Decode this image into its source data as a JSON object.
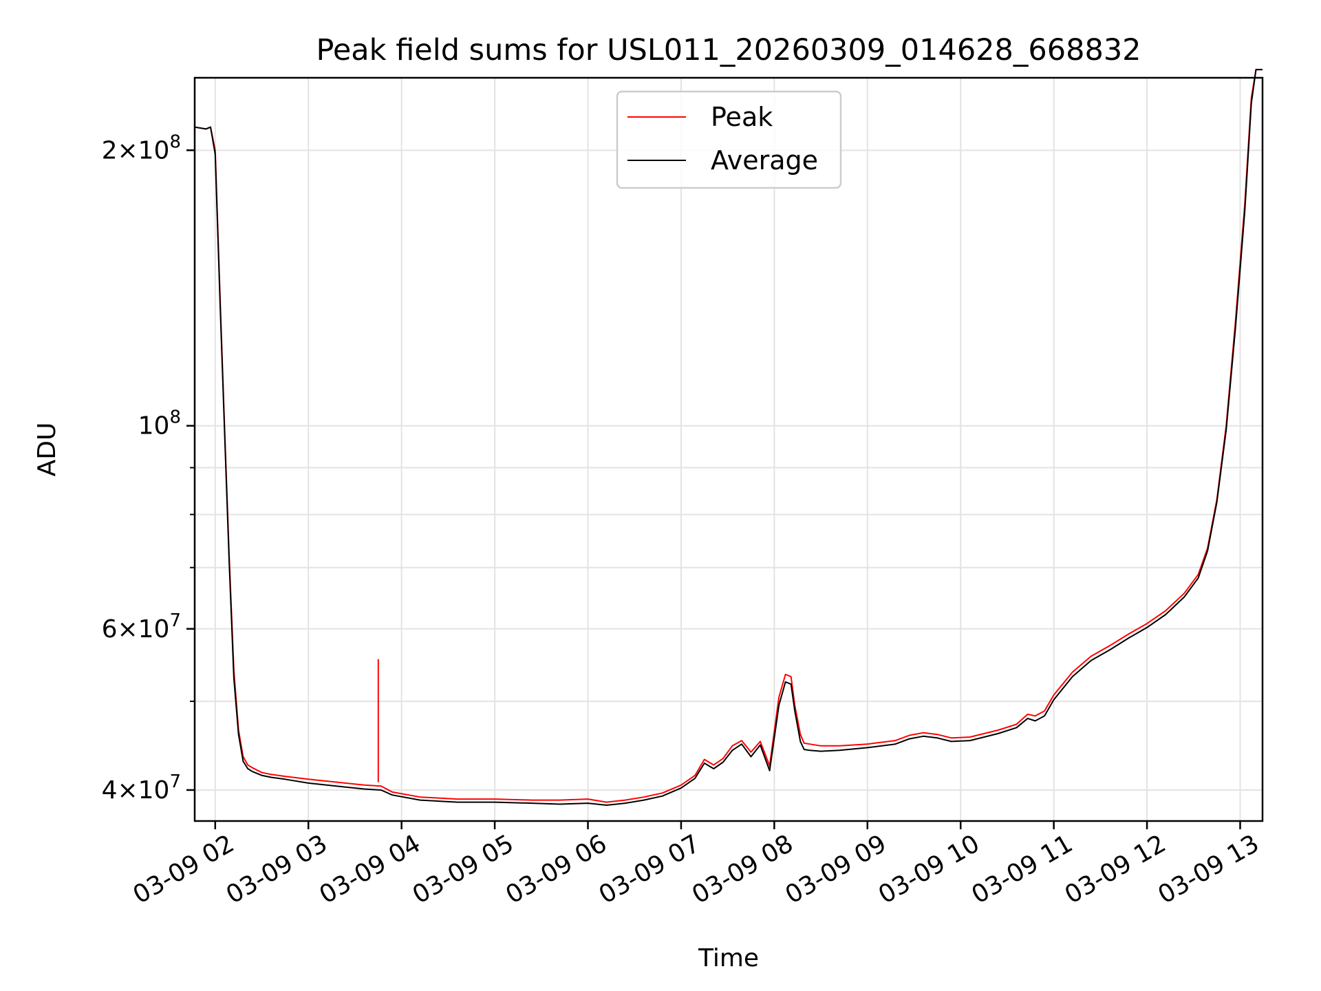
{
  "chart_data": {
    "type": "line",
    "title": "Peak field sums for USL011_20260309_014628_668832",
    "xlabel": "Time",
    "ylabel": "ADU",
    "yscale": "log",
    "grid": true,
    "legend_position": "top-center",
    "xlim_hours": [
      1.78,
      13.24
    ],
    "ylim": [
      37000000,
      240000000
    ],
    "x_ticks": [
      {
        "hour": 2,
        "label": "03-09 02"
      },
      {
        "hour": 3,
        "label": "03-09 03"
      },
      {
        "hour": 4,
        "label": "03-09 04"
      },
      {
        "hour": 5,
        "label": "03-09 05"
      },
      {
        "hour": 6,
        "label": "03-09 06"
      },
      {
        "hour": 7,
        "label": "03-09 07"
      },
      {
        "hour": 8,
        "label": "03-09 08"
      },
      {
        "hour": 9,
        "label": "03-09 09"
      },
      {
        "hour": 10,
        "label": "03-09 10"
      },
      {
        "hour": 11,
        "label": "03-09 11"
      },
      {
        "hour": 12,
        "label": "03-09 12"
      },
      {
        "hour": 13,
        "label": "03-09 13"
      }
    ],
    "y_major_ticks": [
      {
        "value": 40000000,
        "mant": "4",
        "exp": "7"
      },
      {
        "value": 60000000,
        "mant": "6",
        "exp": "7"
      },
      {
        "value": 100000000,
        "mant": "",
        "exp": "8"
      },
      {
        "value": 200000000,
        "mant": "2",
        "exp": "8"
      }
    ],
    "y_minor_ticks": [
      50000000,
      70000000,
      80000000,
      90000000
    ],
    "x_hours": [
      1.78,
      1.9,
      1.95,
      2.0,
      2.05,
      2.1,
      2.15,
      2.2,
      2.25,
      2.3,
      2.35,
      2.4,
      2.5,
      2.6,
      2.75,
      3.0,
      3.3,
      3.6,
      3.78,
      3.9,
      4.2,
      4.6,
      5.0,
      5.4,
      5.7,
      6.0,
      6.2,
      6.4,
      6.6,
      6.8,
      7.0,
      7.15,
      7.25,
      7.35,
      7.45,
      7.55,
      7.65,
      7.75,
      7.85,
      7.95,
      8.05,
      8.12,
      8.18,
      8.22,
      8.28,
      8.32,
      8.38,
      8.5,
      8.7,
      9.0,
      9.3,
      9.45,
      9.6,
      9.75,
      9.9,
      10.1,
      10.4,
      10.6,
      10.72,
      10.8,
      10.9,
      11.0,
      11.2,
      11.4,
      11.6,
      11.8,
      12.0,
      12.2,
      12.4,
      12.55,
      12.65,
      12.75,
      12.85,
      12.95,
      13.05,
      13.12,
      13.17,
      13.24
    ],
    "series": [
      {
        "name": "Peak",
        "color": "#ff0000",
        "values": [
          212000000,
          211000000,
          212000000,
          200000000,
          140000000,
          100000000,
          72000000,
          54000000,
          46500000,
          43500000,
          42600000,
          42300000,
          41800000,
          41600000,
          41400000,
          41100000,
          40800000,
          40500000,
          40400000,
          39800000,
          39300000,
          39100000,
          39100000,
          39000000,
          39000000,
          39100000,
          38800000,
          39000000,
          39300000,
          39700000,
          40500000,
          41500000,
          43200000,
          42600000,
          43300000,
          44700000,
          45300000,
          44000000,
          45200000,
          42500000,
          50500000,
          53500000,
          53200000,
          49500000,
          46000000,
          45000000,
          44900000,
          44700000,
          44700000,
          44900000,
          45300000,
          45900000,
          46200000,
          46000000,
          45600000,
          45700000,
          46500000,
          47200000,
          48400000,
          48200000,
          48800000,
          50800000,
          53800000,
          56000000,
          57500000,
          59200000,
          60800000,
          62800000,
          65600000,
          68800000,
          73500000,
          83000000,
          100000000,
          130000000,
          175000000,
          228000000,
          245000000,
          245000000
        ]
      },
      {
        "name": "Average",
        "color": "#000000",
        "values": [
          212000000,
          211000000,
          212000000,
          198000000,
          138000000,
          99000000,
          71000000,
          53000000,
          46000000,
          43000000,
          42200000,
          41900000,
          41500000,
          41300000,
          41100000,
          40700000,
          40400000,
          40100000,
          40000000,
          39500000,
          39000000,
          38800000,
          38800000,
          38700000,
          38600000,
          38700000,
          38500000,
          38700000,
          39000000,
          39400000,
          40200000,
          41200000,
          42800000,
          42200000,
          42900000,
          44200000,
          44900000,
          43500000,
          44800000,
          42000000,
          49500000,
          52500000,
          52200000,
          48800000,
          45200000,
          44300000,
          44200000,
          44100000,
          44200000,
          44500000,
          44900000,
          45500000,
          45800000,
          45600000,
          45200000,
          45300000,
          46100000,
          46800000,
          47900000,
          47600000,
          48200000,
          50200000,
          53200000,
          55400000,
          56900000,
          58600000,
          60200000,
          62200000,
          65000000,
          68200000,
          73000000,
          82500000,
          99000000,
          128000000,
          172000000,
          225000000,
          245000000,
          245000000
        ]
      }
    ],
    "spike": {
      "hour": 3.75,
      "base": 40800000,
      "top": 55600000
    }
  }
}
